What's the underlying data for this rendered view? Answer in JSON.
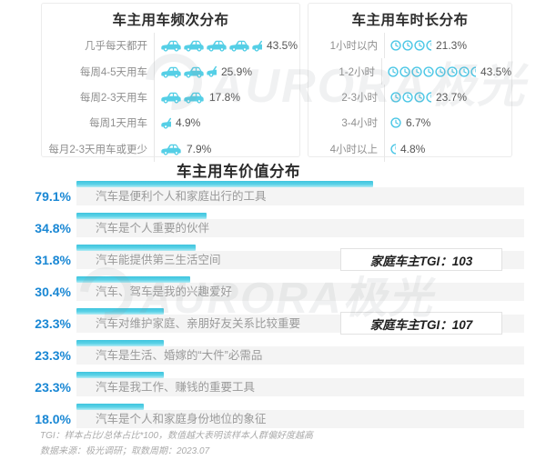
{
  "colors": {
    "icon_cyan": "#55cfe6",
    "bar_cyan": "#4fcbe3",
    "percent_blue": "#1987d4",
    "band_gray": "#f4f4f4",
    "title_dark": "#2e2e2e",
    "label_gray": "#8f8f8f"
  },
  "watermark": {
    "brand": "AURORA极光"
  },
  "chart_data": [
    {
      "type": "bar",
      "orientation": "horizontal",
      "title": "车主用车频次分布",
      "unit": "%",
      "icon": "car",
      "categories": [
        "几乎每天都开",
        "每周4-5天用车",
        "每周2-3天用车",
        "每周1天用车",
        "每月2-3天用车或更少"
      ],
      "values": [
        43.5,
        25.9,
        17.8,
        4.9,
        7.9
      ],
      "value_labels": [
        "43.5%",
        "25.9%",
        "17.8%",
        "4.9%",
        "7.9%"
      ],
      "icon_counts": [
        4.5,
        2.5,
        2,
        0.5,
        1
      ],
      "xlim": [
        0,
        50
      ],
      "grid": false
    },
    {
      "type": "bar",
      "orientation": "horizontal",
      "title": "车主用车时长分布",
      "unit": "%",
      "icon": "clock",
      "categories": [
        "1小时以内",
        "1-2小时",
        "2-3小时",
        "3-4小时",
        "4小时以上"
      ],
      "values": [
        21.3,
        43.5,
        23.7,
        6.7,
        4.8
      ],
      "value_labels": [
        "21.3%",
        "43.5%",
        "23.7%",
        "6.7%",
        "4.8%"
      ],
      "icon_counts": [
        3.5,
        7.5,
        3.5,
        1,
        0.5
      ],
      "xlim": [
        0,
        50
      ],
      "grid": false
    },
    {
      "type": "bar",
      "orientation": "horizontal",
      "title": "车主用车价值分布",
      "unit": "%",
      "categories": [
        "汽车是便利个人和家庭出行的工具",
        "汽车是个人重要的伙伴",
        "汽车能提供第三生活空间",
        "汽车、驾车是我的兴趣爱好",
        "汽车对维护家庭、亲朋好友关系比较重要",
        "汽车是生活、婚嫁的“大件”必需品",
        "汽车是我工作、赚钱的重要工具",
        "汽车是个人和家庭身份地位的象征"
      ],
      "values": [
        79.1,
        34.8,
        31.8,
        30.4,
        23.3,
        23.3,
        23.3,
        18.0
      ],
      "value_labels": [
        "79.1%",
        "34.8%",
        "31.8%",
        "30.4%",
        "23.3%",
        "23.3%",
        "23.3%",
        "18.0%"
      ],
      "annotations": [
        {
          "row_index": 2,
          "text": "家庭车主TGI：103"
        },
        {
          "row_index": 4,
          "text": "家庭车主TGI：107"
        }
      ],
      "xlim": [
        0,
        100
      ],
      "grid": false
    }
  ],
  "footnotes": [
    "TGI：样本占比/总体占比*100，数值越大表明该样本人群偏好度越高",
    "数据来源：极光调研；取数周期：2023.07"
  ]
}
